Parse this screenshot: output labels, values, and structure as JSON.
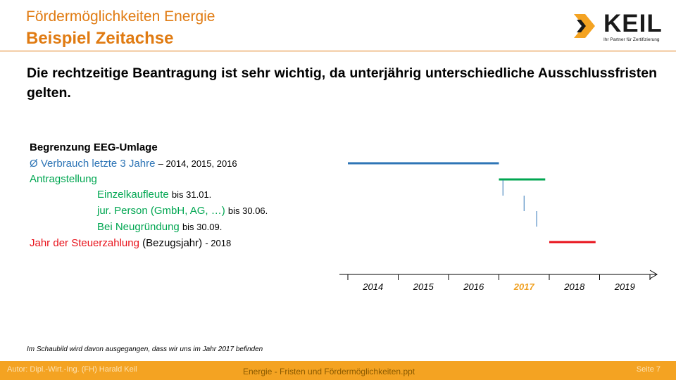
{
  "header": {
    "title_line1": "Fördermöglichkeiten Energie",
    "title_line2": "Beispiel Zeitachse"
  },
  "logo": {
    "name": "KEIL",
    "tagline": "Ihr Partner für Zertifizierung"
  },
  "intro": "Die rechtzeitige Beantragung ist sehr wichtig, da unterjährig unterschiedliche Ausschlussfristen gelten.",
  "list": {
    "heading": "Begrenzung EEG-Umlage",
    "verbrauch": {
      "label": "Ø Verbrauch letzte 3 Jahre",
      "detail": "– 2014, 2015, 2016"
    },
    "antrag": {
      "label": "Antragstellung"
    },
    "einzel": {
      "label": "Einzelkaufleute",
      "detail": "bis 31.01."
    },
    "jur": {
      "label": "jur. Person (GmbH, AG, …)",
      "detail": "bis 30.06."
    },
    "neu": {
      "label": "Bei Neugründung",
      "detail": "bis 30.09."
    },
    "steuer": {
      "label": "Jahr der Steuerzahlung",
      "label2": "(Bezugsjahr)",
      "detail": "- 2018"
    }
  },
  "colors": {
    "orange": "#e07b12",
    "blue": "#2e75b6",
    "green": "#00a651",
    "red": "#e8121b",
    "footer": "#f4a322",
    "highlight_year": "#f0a020"
  },
  "chart_data": {
    "type": "timeline",
    "years": [
      "2014",
      "2015",
      "2016",
      "2017",
      "2018",
      "2019"
    ],
    "current_year": "2017",
    "bars": [
      {
        "label": "Ø Verbrauch letzte 3 Jahre",
        "start": 2014.0,
        "end": 2017.0,
        "color": "#2e75b6"
      },
      {
        "label": "Antragstellung",
        "start": 2017.0,
        "end": 2017.92,
        "color": "#00a651"
      },
      {
        "label": "Jahr der Steuerzahlung",
        "start": 2018.0,
        "end": 2018.92,
        "color": "#e8121b"
      }
    ],
    "markers": [
      {
        "label": "Einzelkaufleute",
        "date": 2017.08,
        "color": "#2e75b6"
      },
      {
        "label": "jur. Person (GmbH, AG, …)",
        "date": 2017.5,
        "color": "#2e75b6"
      },
      {
        "label": "Bei Neugründung",
        "date": 2017.75,
        "color": "#2e75b6"
      }
    ]
  },
  "note": "Im Schaubild wird davon ausgegangen, dass wir uns im Jahr 2017 befinden",
  "footer": {
    "author": "Autor: Dipl.-Wirt.-Ing. (FH) Harald Keil",
    "file": "Energie - Fristen und Fördermöglichkeiten.ppt",
    "page": "Seite 7"
  }
}
